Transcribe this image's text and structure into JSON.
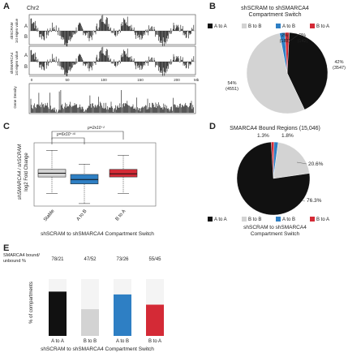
{
  "panel_a": {
    "letter": "A",
    "chrom_label": "Chr2",
    "track1_label": [
      "shSCRAM",
      "1st eigen value"
    ],
    "track2_label": [
      "shSMARCA4",
      "1st eigen value"
    ],
    "track3_label": [
      "Gene Density"
    ],
    "compartment_labels": [
      "A",
      "B"
    ],
    "x_ticks": [
      "0",
      "50",
      "100",
      "150",
      "200"
    ],
    "x_unit": "Mb"
  },
  "panel_b": {
    "letter": "B",
    "title": [
      "shSCRAM to shSMARCA4",
      "Compartment Switch"
    ],
    "legend": [
      {
        "label": "A to A",
        "color": "#111111"
      },
      {
        "label": "B to B",
        "color": "#d3d3d3"
      },
      {
        "label": "A to B",
        "color": "#2e7fc4"
      },
      {
        "label": "B to A",
        "color": "#d42a36"
      }
    ]
  },
  "panel_c": {
    "letter": "C",
    "ylabel": [
      "shSMARCA4 / shSCRAM",
      "log2 Fold Change"
    ],
    "xlabel": "shSCRAM to shSMARCA4 Compartment Switch",
    "pval_top": "p=2x10⁻²",
    "pval_bottom": "p=6x10⁻¹⁹"
  },
  "panel_d": {
    "letter": "D",
    "title": "SMARCA4 Bound Regions (15,046)",
    "legend": [
      {
        "label": "A to A",
        "color": "#111111"
      },
      {
        "label": "B to B",
        "color": "#d3d3d3"
      },
      {
        "label": "A to B",
        "color": "#2e7fc4"
      },
      {
        "label": "B to A",
        "color": "#d42a36"
      }
    ],
    "footer": [
      "shSCRAM to shSMARCA4",
      "Compartment Switch"
    ]
  },
  "panel_e": {
    "letter": "E",
    "ratio_header": [
      "SMARCA4 bound/",
      "unbound %"
    ],
    "ylabel": "% of compartments",
    "xlabel": "shSCRAM to shSMARCA4 Compartment Switch"
  },
  "chart_data": [
    {
      "type": "pie",
      "panel": "B",
      "labels": [
        "A to A",
        "B to B",
        "A to B",
        "B to A"
      ],
      "values": [
        3547,
        4551,
        183,
        142
      ],
      "percent_labels": [
        "42%",
        "54%",
        "2%",
        "2%"
      ],
      "count_labels": [
        "(3547)",
        "(4551)",
        "(183)",
        "(142)"
      ],
      "colors": [
        "#111111",
        "#d3d3d3",
        "#2e7fc4",
        "#d42a36"
      ]
    },
    {
      "type": "box",
      "panel": "C",
      "categories": [
        "Stable",
        "A to B",
        "B to A"
      ],
      "whisker_low": [
        -1.6,
        -2.4,
        -1.6
      ],
      "q1": [
        -0.3,
        -0.85,
        -0.3
      ],
      "median": [
        0.0,
        -0.5,
        -0.05
      ],
      "q3": [
        0.3,
        -0.1,
        0.3
      ],
      "whisker_high": [
        1.8,
        0.7,
        1.4
      ],
      "ylim": [
        -2.6,
        2.4
      ],
      "colors": [
        "#d3d3d3",
        "#2e7fc4",
        "#d42a36"
      ]
    },
    {
      "type": "pie",
      "panel": "D",
      "labels": [
        "A to A",
        "B to B",
        "A to B",
        "B to A"
      ],
      "values": [
        76.3,
        20.6,
        1.8,
        1.3
      ],
      "percent_labels": [
        "76.3%",
        "20.6%",
        "1.8%",
        "1.3%"
      ],
      "colors": [
        "#111111",
        "#d3d3d3",
        "#2e7fc4",
        "#d42a36"
      ]
    },
    {
      "type": "bar",
      "panel": "E",
      "categories": [
        "A to A",
        "B to B",
        "A to B",
        "B to A"
      ],
      "values": [
        78,
        47,
        73,
        55
      ],
      "ratio_labels": [
        "78/21",
        "47/52",
        "73/26",
        "55/45"
      ],
      "ylim": [
        0,
        100
      ],
      "colors": [
        "#111111",
        "#d3d3d3",
        "#2e7fc4",
        "#d42a36"
      ]
    }
  ]
}
